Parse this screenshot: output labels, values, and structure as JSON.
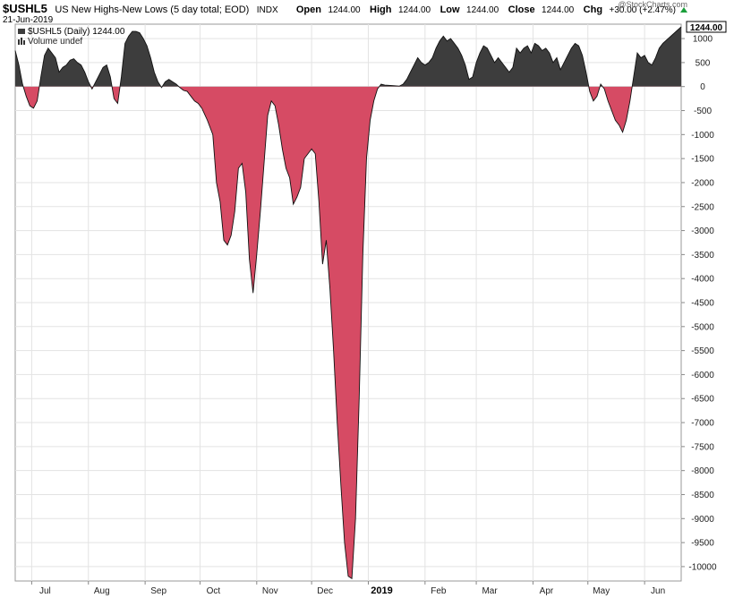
{
  "header": {
    "symbol": "$USHL5",
    "description": "US New Highs-New Lows (5 day total; EOD)",
    "exchange": "INDX",
    "date": "21-Jun-2019",
    "open_label": "Open",
    "open": "1244.00",
    "high_label": "High",
    "high": "1244.00",
    "low_label": "Low",
    "low": "1244.00",
    "close_label": "Close",
    "close": "1244.00",
    "chg_label": "Chg",
    "chg": "+30.00 (+2.47%)",
    "watermark": "@StockCharts.com"
  },
  "legend": {
    "series_label": "$USHL5 (Daily) 1244.00",
    "volume_label": "Volume undef"
  },
  "last_value_label": "1244.00",
  "colors": {
    "positive": "#3d3d3d",
    "negative": "#d64b64",
    "up_arrow": "#1a9e3a"
  },
  "chart_data": {
    "type": "area",
    "title": "US New Highs-New Lows (5 day total; EOD)",
    "ylim": [
      -10300,
      1300
    ],
    "yticks": [
      1000,
      500,
      0,
      -500,
      -1000,
      -1500,
      -2000,
      -2500,
      -3000,
      -3500,
      -4000,
      -4500,
      -5000,
      -5500,
      -6000,
      -6500,
      -7000,
      -7500,
      -8000,
      -8500,
      -9000,
      -9500,
      -10000
    ],
    "grid": true,
    "month_labels": [
      {
        "label": "Jul",
        "date": "2018-07-01"
      },
      {
        "label": "Aug",
        "date": "2018-08-01"
      },
      {
        "label": "Sep",
        "date": "2018-09-01"
      },
      {
        "label": "Oct",
        "date": "2018-10-01"
      },
      {
        "label": "Nov",
        "date": "2018-11-01"
      },
      {
        "label": "Dec",
        "date": "2018-12-01"
      },
      {
        "label": "2019",
        "date": "2019-01-01",
        "bold": true
      },
      {
        "label": "Feb",
        "date": "2019-02-01"
      },
      {
        "label": "Mar",
        "date": "2019-03-01"
      },
      {
        "label": "Apr",
        "date": "2019-04-01"
      },
      {
        "label": "May",
        "date": "2019-05-01"
      },
      {
        "label": "Jun",
        "date": "2019-06-01"
      }
    ],
    "x_start": "2018-06-22",
    "x_end": "2019-06-21",
    "series": [
      {
        "points": [
          [
            "2018-06-22",
            750
          ],
          [
            "2018-06-24",
            450
          ],
          [
            "2018-06-26",
            50
          ],
          [
            "2018-06-28",
            -200
          ],
          [
            "2018-06-30",
            -400
          ],
          [
            "2018-07-02",
            -450
          ],
          [
            "2018-07-04",
            -300
          ],
          [
            "2018-07-06",
            200
          ],
          [
            "2018-07-08",
            650
          ],
          [
            "2018-07-10",
            800
          ],
          [
            "2018-07-12",
            700
          ],
          [
            "2018-07-14",
            600
          ],
          [
            "2018-07-16",
            300
          ],
          [
            "2018-07-18",
            400
          ],
          [
            "2018-07-20",
            450
          ],
          [
            "2018-07-22",
            550
          ],
          [
            "2018-07-24",
            580
          ],
          [
            "2018-07-26",
            500
          ],
          [
            "2018-07-28",
            450
          ],
          [
            "2018-07-30",
            300
          ],
          [
            "2018-08-01",
            100
          ],
          [
            "2018-08-03",
            -50
          ],
          [
            "2018-08-05",
            100
          ],
          [
            "2018-08-07",
            250
          ],
          [
            "2018-08-09",
            400
          ],
          [
            "2018-08-11",
            450
          ],
          [
            "2018-08-13",
            200
          ],
          [
            "2018-08-15",
            -250
          ],
          [
            "2018-08-17",
            -350
          ],
          [
            "2018-08-19",
            200
          ],
          [
            "2018-08-21",
            900
          ],
          [
            "2018-08-23",
            1050
          ],
          [
            "2018-08-25",
            1150
          ],
          [
            "2018-08-27",
            1150
          ],
          [
            "2018-08-29",
            1120
          ],
          [
            "2018-08-31",
            1000
          ],
          [
            "2018-09-02",
            850
          ],
          [
            "2018-09-04",
            600
          ],
          [
            "2018-09-06",
            300
          ],
          [
            "2018-09-08",
            100
          ],
          [
            "2018-09-10",
            -20
          ],
          [
            "2018-09-12",
            100
          ],
          [
            "2018-09-14",
            150
          ],
          [
            "2018-09-16",
            100
          ],
          [
            "2018-09-18",
            50
          ],
          [
            "2018-09-20",
            -20
          ],
          [
            "2018-09-22",
            -80
          ],
          [
            "2018-09-24",
            -100
          ],
          [
            "2018-09-26",
            -200
          ],
          [
            "2018-09-28",
            -300
          ],
          [
            "2018-09-30",
            -350
          ],
          [
            "2018-10-02",
            -450
          ],
          [
            "2018-10-05",
            -700
          ],
          [
            "2018-10-08",
            -1000
          ],
          [
            "2018-10-10",
            -2000
          ],
          [
            "2018-10-12",
            -2400
          ],
          [
            "2018-10-14",
            -3200
          ],
          [
            "2018-10-16",
            -3300
          ],
          [
            "2018-10-18",
            -3100
          ],
          [
            "2018-10-20",
            -2600
          ],
          [
            "2018-10-22",
            -1700
          ],
          [
            "2018-10-24",
            -1600
          ],
          [
            "2018-10-26",
            -2200
          ],
          [
            "2018-10-28",
            -3600
          ],
          [
            "2018-10-30",
            -4300
          ],
          [
            "2018-11-01",
            -3500
          ],
          [
            "2018-11-03",
            -2600
          ],
          [
            "2018-11-05",
            -1600
          ],
          [
            "2018-11-07",
            -600
          ],
          [
            "2018-11-09",
            -300
          ],
          [
            "2018-11-11",
            -400
          ],
          [
            "2018-11-13",
            -800
          ],
          [
            "2018-11-15",
            -1300
          ],
          [
            "2018-11-17",
            -1700
          ],
          [
            "2018-11-19",
            -1900
          ],
          [
            "2018-11-21",
            -2450
          ],
          [
            "2018-11-23",
            -2300
          ],
          [
            "2018-11-25",
            -2100
          ],
          [
            "2018-11-27",
            -1500
          ],
          [
            "2018-11-29",
            -1400
          ],
          [
            "2018-12-01",
            -1300
          ],
          [
            "2018-12-03",
            -1400
          ],
          [
            "2018-12-05",
            -2400
          ],
          [
            "2018-12-07",
            -3700
          ],
          [
            "2018-12-09",
            -3200
          ],
          [
            "2018-12-11",
            -4200
          ],
          [
            "2018-12-13",
            -5500
          ],
          [
            "2018-12-15",
            -7000
          ],
          [
            "2018-12-17",
            -8300
          ],
          [
            "2018-12-19",
            -9500
          ],
          [
            "2018-12-21",
            -10200
          ],
          [
            "2018-12-23",
            -10250
          ],
          [
            "2018-12-25",
            -9000
          ],
          [
            "2018-12-27",
            -6500
          ],
          [
            "2018-12-29",
            -3500
          ],
          [
            "2018-12-31",
            -1500
          ],
          [
            "2019-01-02",
            -700
          ],
          [
            "2019-01-04",
            -300
          ],
          [
            "2019-01-06",
            -50
          ],
          [
            "2019-01-08",
            50
          ],
          [
            "2019-01-10",
            30
          ],
          [
            "2019-01-14",
            20
          ],
          [
            "2019-01-18",
            10
          ],
          [
            "2019-01-20",
            50
          ],
          [
            "2019-01-22",
            150
          ],
          [
            "2019-01-24",
            300
          ],
          [
            "2019-01-26",
            450
          ],
          [
            "2019-01-28",
            600
          ],
          [
            "2019-01-30",
            500
          ],
          [
            "2019-02-01",
            450
          ],
          [
            "2019-02-03",
            500
          ],
          [
            "2019-02-05",
            600
          ],
          [
            "2019-02-07",
            800
          ],
          [
            "2019-02-09",
            950
          ],
          [
            "2019-02-11",
            1050
          ],
          [
            "2019-02-13",
            950
          ],
          [
            "2019-02-15",
            1000
          ],
          [
            "2019-02-17",
            900
          ],
          [
            "2019-02-19",
            800
          ],
          [
            "2019-02-21",
            650
          ],
          [
            "2019-02-23",
            450
          ],
          [
            "2019-02-25",
            150
          ],
          [
            "2019-02-27",
            200
          ],
          [
            "2019-03-01",
            500
          ],
          [
            "2019-03-03",
            700
          ],
          [
            "2019-03-05",
            850
          ],
          [
            "2019-03-07",
            800
          ],
          [
            "2019-03-09",
            650
          ],
          [
            "2019-03-11",
            500
          ],
          [
            "2019-03-13",
            600
          ],
          [
            "2019-03-15",
            500
          ],
          [
            "2019-03-17",
            400
          ],
          [
            "2019-03-19",
            300
          ],
          [
            "2019-03-21",
            400
          ],
          [
            "2019-03-23",
            800
          ],
          [
            "2019-03-25",
            700
          ],
          [
            "2019-03-27",
            800
          ],
          [
            "2019-03-29",
            850
          ],
          [
            "2019-03-31",
            700
          ],
          [
            "2019-04-02",
            900
          ],
          [
            "2019-04-04",
            850
          ],
          [
            "2019-04-06",
            750
          ],
          [
            "2019-04-08",
            800
          ],
          [
            "2019-04-10",
            700
          ],
          [
            "2019-04-12",
            500
          ],
          [
            "2019-04-14",
            600
          ],
          [
            "2019-04-16",
            350
          ],
          [
            "2019-04-18",
            500
          ],
          [
            "2019-04-20",
            650
          ],
          [
            "2019-04-22",
            800
          ],
          [
            "2019-04-24",
            900
          ],
          [
            "2019-04-26",
            850
          ],
          [
            "2019-04-28",
            650
          ],
          [
            "2019-04-30",
            300
          ],
          [
            "2019-05-02",
            -100
          ],
          [
            "2019-05-04",
            -300
          ],
          [
            "2019-05-06",
            -200
          ],
          [
            "2019-05-08",
            50
          ],
          [
            "2019-05-10",
            -50
          ],
          [
            "2019-05-12",
            -300
          ],
          [
            "2019-05-14",
            -500
          ],
          [
            "2019-05-16",
            -700
          ],
          [
            "2019-05-18",
            -800
          ],
          [
            "2019-05-20",
            -950
          ],
          [
            "2019-05-22",
            -700
          ],
          [
            "2019-05-24",
            -300
          ],
          [
            "2019-05-26",
            200
          ],
          [
            "2019-05-28",
            700
          ],
          [
            "2019-05-30",
            600
          ],
          [
            "2019-06-01",
            650
          ],
          [
            "2019-06-03",
            500
          ],
          [
            "2019-06-05",
            450
          ],
          [
            "2019-06-07",
            600
          ],
          [
            "2019-06-09",
            800
          ],
          [
            "2019-06-11",
            900
          ],
          [
            "2019-06-21",
            1244
          ]
        ]
      }
    ]
  }
}
